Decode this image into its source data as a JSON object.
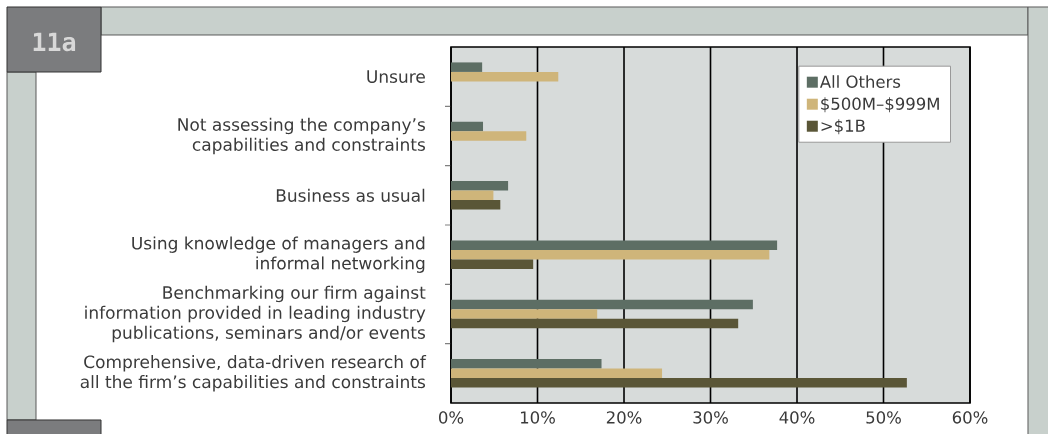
{
  "chart_data": {
    "type": "bar",
    "orientation": "horizontal",
    "categories": [
      "Unsure",
      "Not assessing the company’s capabilities and constraints",
      "Business as usual",
      "Using knowledge of managers and informal networking",
      "Benchmarking our firm against information provided in leading industry publications, seminars and/or events",
      "Comprehensive, data-driven research of all the firm’s capabilities and constraints"
    ],
    "series": [
      {
        "name": "All Others",
        "color": "#5d6e64",
        "values": [
          3.6,
          3.7,
          6.6,
          37.7,
          34.9,
          17.4
        ]
      },
      {
        "name": "$500M–$999M",
        "color": "#cfb57a",
        "values": [
          12.4,
          8.7,
          4.9,
          36.8,
          16.9,
          24.4
        ]
      },
      {
        "name": ">$1B",
        "color": "#5a5637",
        "values": [
          null,
          null,
          5.7,
          9.5,
          33.2,
          52.7
        ]
      }
    ],
    "xlim": [
      0,
      60
    ],
    "xticks": [
      {
        "value": 0,
        "label": "0%"
      },
      {
        "value": 10,
        "label": "10%"
      },
      {
        "value": 20,
        "label": "20%"
      },
      {
        "value": 30,
        "label": "30%"
      },
      {
        "value": 40,
        "label": "40%"
      },
      {
        "value": 50,
        "label": "50%"
      },
      {
        "value": 60,
        "label": "60%"
      }
    ],
    "grid": "x",
    "legend": "top right",
    "annotations": [
      "11a"
    ]
  }
}
